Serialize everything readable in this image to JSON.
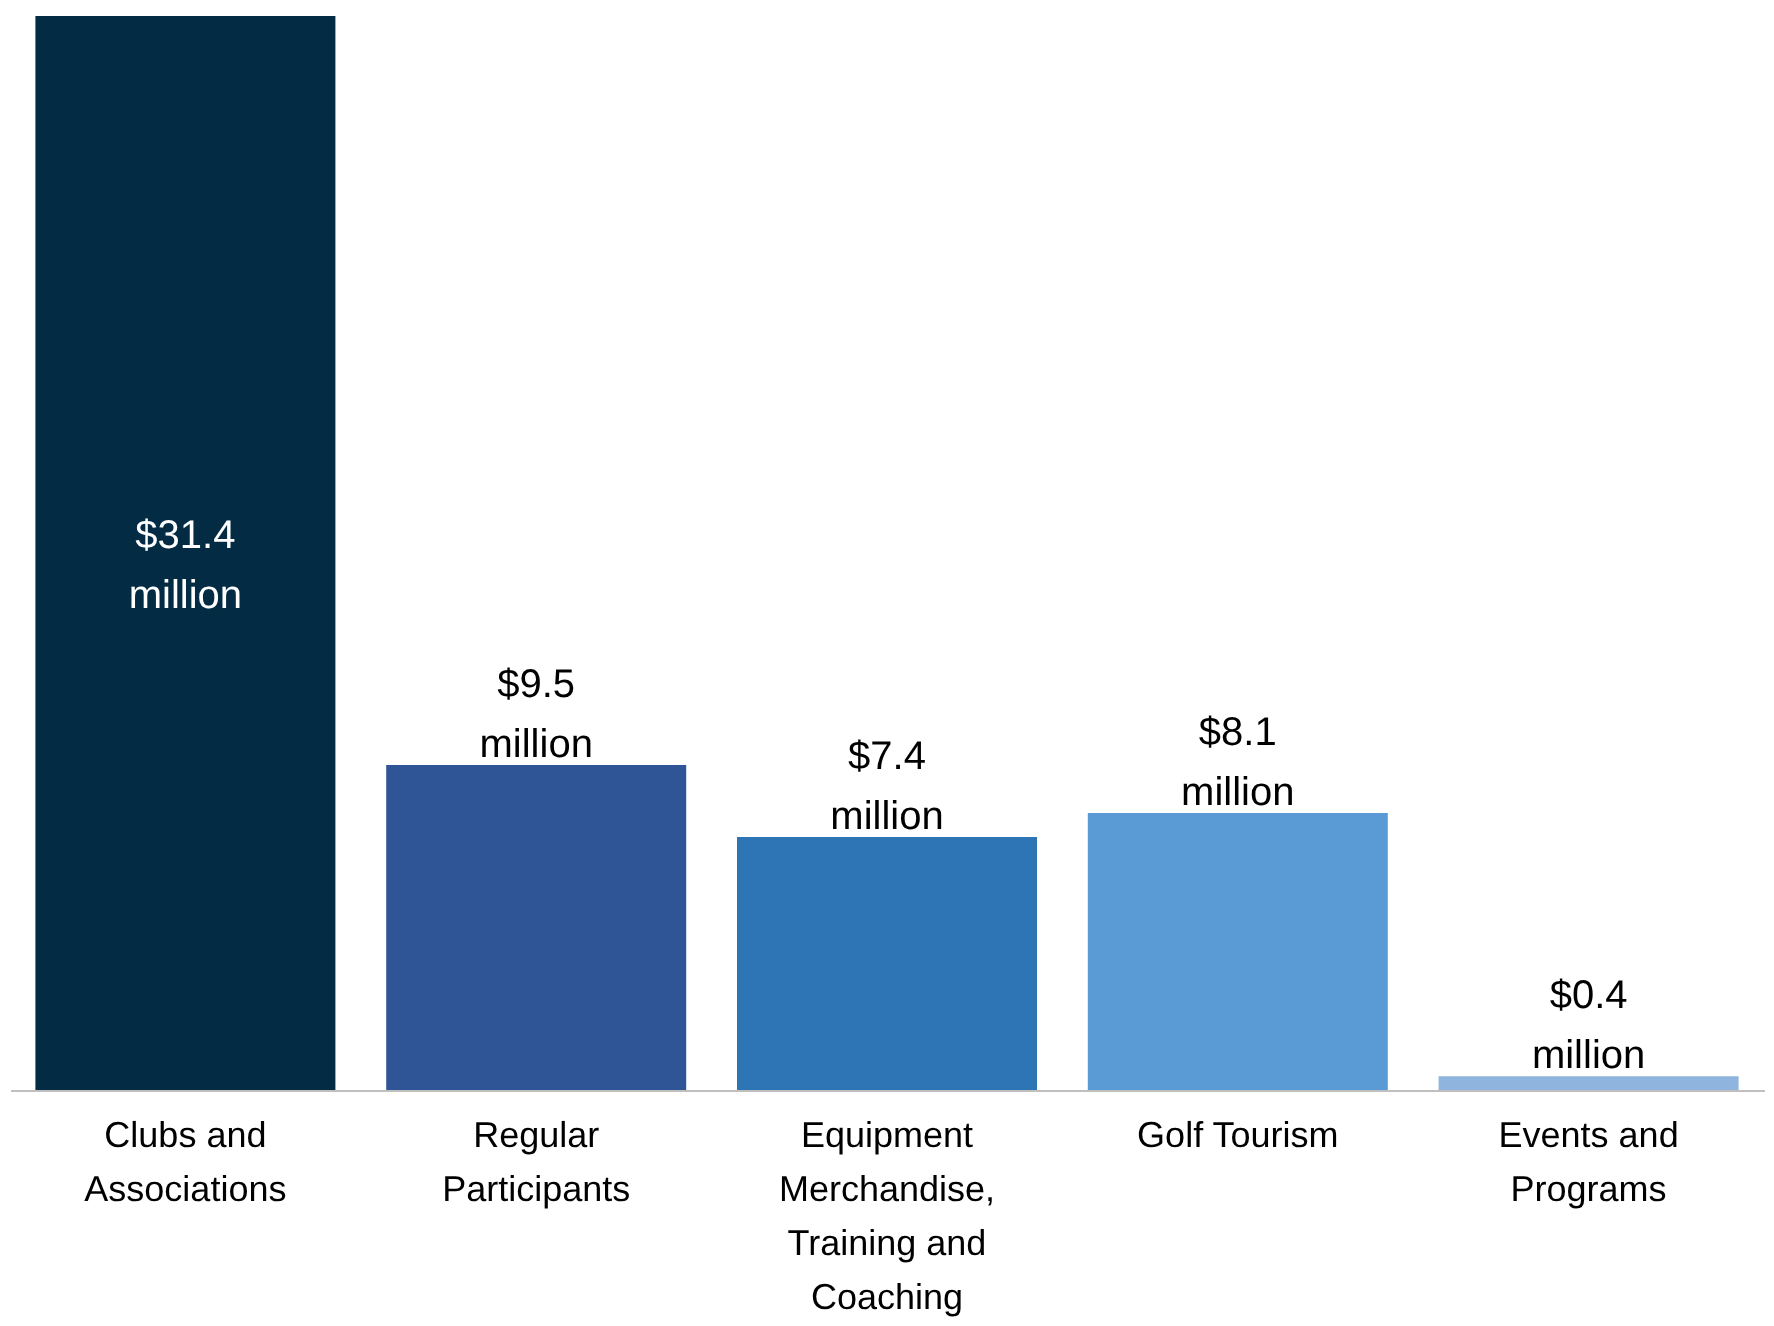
{
  "chart_data": {
    "type": "bar",
    "categories": [
      "Clubs and Associations",
      "Regular Participants",
      "Equipment Merchandise, Training and Coaching",
      "Golf Tourism",
      "Events and Programs"
    ],
    "values": [
      31.4,
      9.5,
      7.4,
      8.1,
      0.4
    ],
    "colors": [
      "#032b44",
      "#2f5597",
      "#2e75b6",
      "#5b9bd5",
      "#8fb4de"
    ],
    "value_labels": [
      "$31.4 million",
      "$9.5 million",
      "$7.4 million",
      "$8.1 million",
      "$0.4 million"
    ],
    "grid": false
  }
}
